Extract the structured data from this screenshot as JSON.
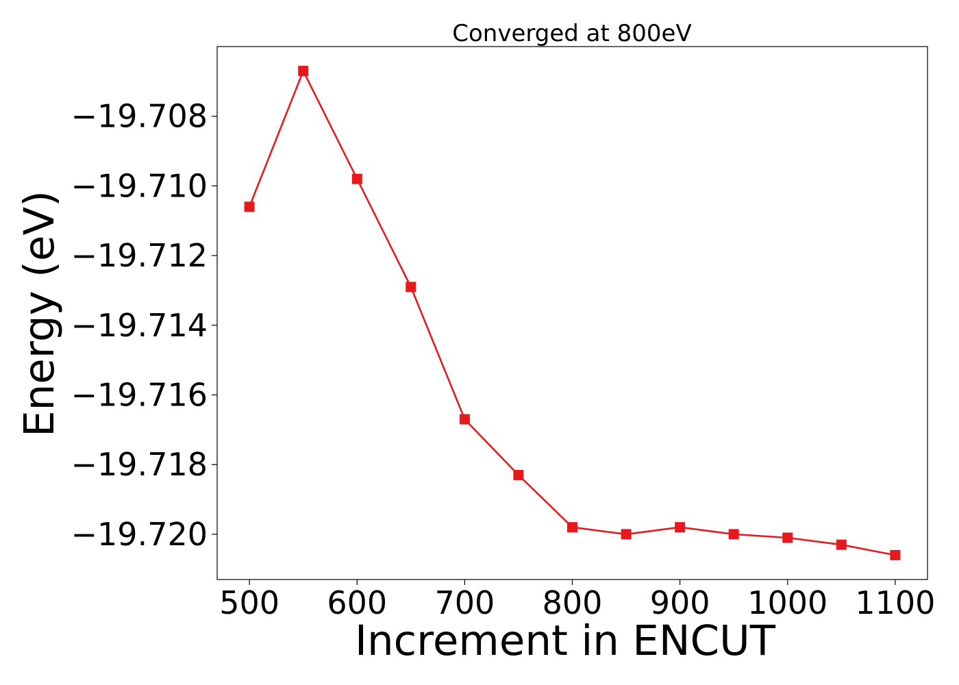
{
  "chart_data": {
    "type": "line",
    "title": "Converged at 800eV",
    "xlabel": "Increment in ENCUT",
    "ylabel": "Energy (eV)",
    "xlim": [
      470,
      1130
    ],
    "ylim": [
      -19.7213,
      -19.706
    ],
    "x_ticks": [
      500,
      600,
      700,
      800,
      900,
      1000,
      1100
    ],
    "y_ticks": [
      -19.708,
      -19.71,
      -19.712,
      -19.714,
      -19.716,
      -19.718,
      -19.72
    ],
    "x_tick_labels": [
      "500",
      "600",
      "700",
      "800",
      "900",
      "1000",
      "1100"
    ],
    "y_tick_labels": [
      "−19.708",
      "−19.710",
      "−19.712",
      "−19.714",
      "−19.716",
      "−19.718",
      "−19.720"
    ],
    "grid": false,
    "legend": "none",
    "series": [
      {
        "color": "#e8191c",
        "marker": "square",
        "x": [
          500,
          550,
          600,
          650,
          700,
          750,
          800,
          850,
          900,
          950,
          1000,
          1050,
          1100
        ],
        "y": [
          -19.7106,
          -19.7067,
          -19.7098,
          -19.7129,
          -19.7167,
          -19.7183,
          -19.7198,
          -19.72,
          -19.7198,
          -19.72,
          -19.7201,
          -19.7203,
          -19.7206
        ]
      }
    ]
  }
}
